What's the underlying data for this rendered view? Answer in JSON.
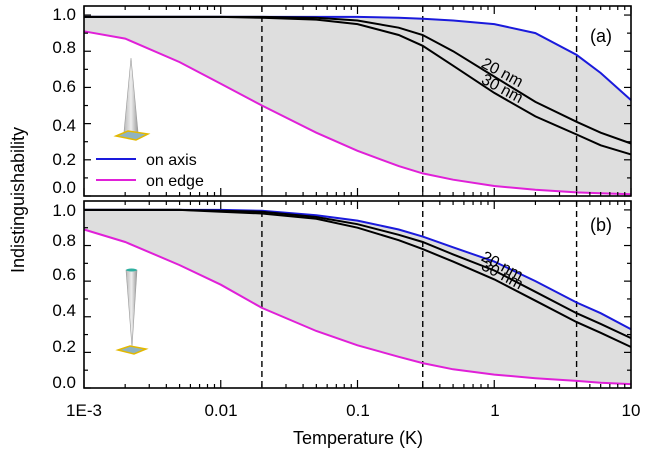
{
  "figure": {
    "ylabel": "Indistinguishability",
    "xlabel": "Temperature (K)",
    "x_tick_labels": [
      "1E-3",
      "0.01",
      "0.1",
      "1",
      "10"
    ],
    "y_tick_labels": [
      "0.0",
      "0.2",
      "0.4",
      "0.6",
      "0.8",
      "1.0"
    ],
    "legend": {
      "on_axis": "on axis",
      "on_edge": "on edge"
    },
    "colors": {
      "on_axis": "#1a1adc",
      "on_edge": "#e020d8",
      "nm_curves": "#000000",
      "shade": "#dedede"
    }
  },
  "chart_data": [
    {
      "type": "line",
      "panel_label": "(a)",
      "x_scale": "log",
      "xlim": [
        0.001,
        10
      ],
      "ylim": [
        0,
        1.05
      ],
      "vertical_dashed_lines_x": [
        0.02,
        0.3,
        4
      ],
      "shaded_between": [
        "on axis",
        "on edge"
      ],
      "x": [
        0.001,
        0.002,
        0.005,
        0.01,
        0.02,
        0.05,
        0.1,
        0.2,
        0.3,
        0.5,
        1,
        2,
        4,
        6,
        10
      ],
      "series": [
        {
          "name": "on axis",
          "values": [
            0.99,
            0.99,
            0.99,
            0.99,
            0.99,
            0.99,
            0.99,
            0.985,
            0.98,
            0.97,
            0.95,
            0.9,
            0.78,
            0.68,
            0.53
          ]
        },
        {
          "name": "20 nm",
          "label": "20 nm",
          "values": [
            0.99,
            0.99,
            0.99,
            0.99,
            0.99,
            0.985,
            0.97,
            0.93,
            0.89,
            0.8,
            0.66,
            0.52,
            0.41,
            0.35,
            0.29
          ]
        },
        {
          "name": "30 nm",
          "label": "30 nm",
          "values": [
            0.99,
            0.99,
            0.99,
            0.99,
            0.985,
            0.975,
            0.95,
            0.89,
            0.83,
            0.72,
            0.57,
            0.44,
            0.34,
            0.28,
            0.23
          ]
        },
        {
          "name": "on edge",
          "values": [
            0.91,
            0.87,
            0.74,
            0.62,
            0.5,
            0.35,
            0.25,
            0.165,
            0.125,
            0.09,
            0.055,
            0.035,
            0.02,
            0.015,
            0.01
          ]
        }
      ]
    },
    {
      "type": "line",
      "panel_label": "(b)",
      "x_scale": "log",
      "xlim": [
        0.001,
        10
      ],
      "ylim": [
        0,
        1.05
      ],
      "vertical_dashed_lines_x": [
        0.02,
        0.3,
        4
      ],
      "shaded_between": [
        "on axis",
        "on edge"
      ],
      "x": [
        0.001,
        0.002,
        0.005,
        0.01,
        0.02,
        0.05,
        0.1,
        0.2,
        0.3,
        0.5,
        1,
        2,
        4,
        6,
        10
      ],
      "series": [
        {
          "name": "on axis",
          "values": [
            1.0,
            1.0,
            1.0,
            1.0,
            0.995,
            0.97,
            0.94,
            0.89,
            0.85,
            0.79,
            0.71,
            0.6,
            0.48,
            0.42,
            0.33
          ]
        },
        {
          "name": "20 nm",
          "label": "20 nm",
          "values": [
            1.0,
            1.0,
            1.0,
            0.995,
            0.99,
            0.96,
            0.92,
            0.86,
            0.82,
            0.75,
            0.66,
            0.54,
            0.42,
            0.36,
            0.28
          ]
        },
        {
          "name": "30 nm",
          "label": "30 nm",
          "values": [
            1.0,
            1.0,
            1.0,
            0.99,
            0.98,
            0.95,
            0.9,
            0.83,
            0.78,
            0.71,
            0.61,
            0.49,
            0.37,
            0.31,
            0.23
          ]
        },
        {
          "name": "on edge",
          "values": [
            0.89,
            0.82,
            0.69,
            0.58,
            0.45,
            0.32,
            0.24,
            0.175,
            0.14,
            0.105,
            0.075,
            0.055,
            0.04,
            0.03,
            0.022
          ]
        }
      ]
    }
  ]
}
